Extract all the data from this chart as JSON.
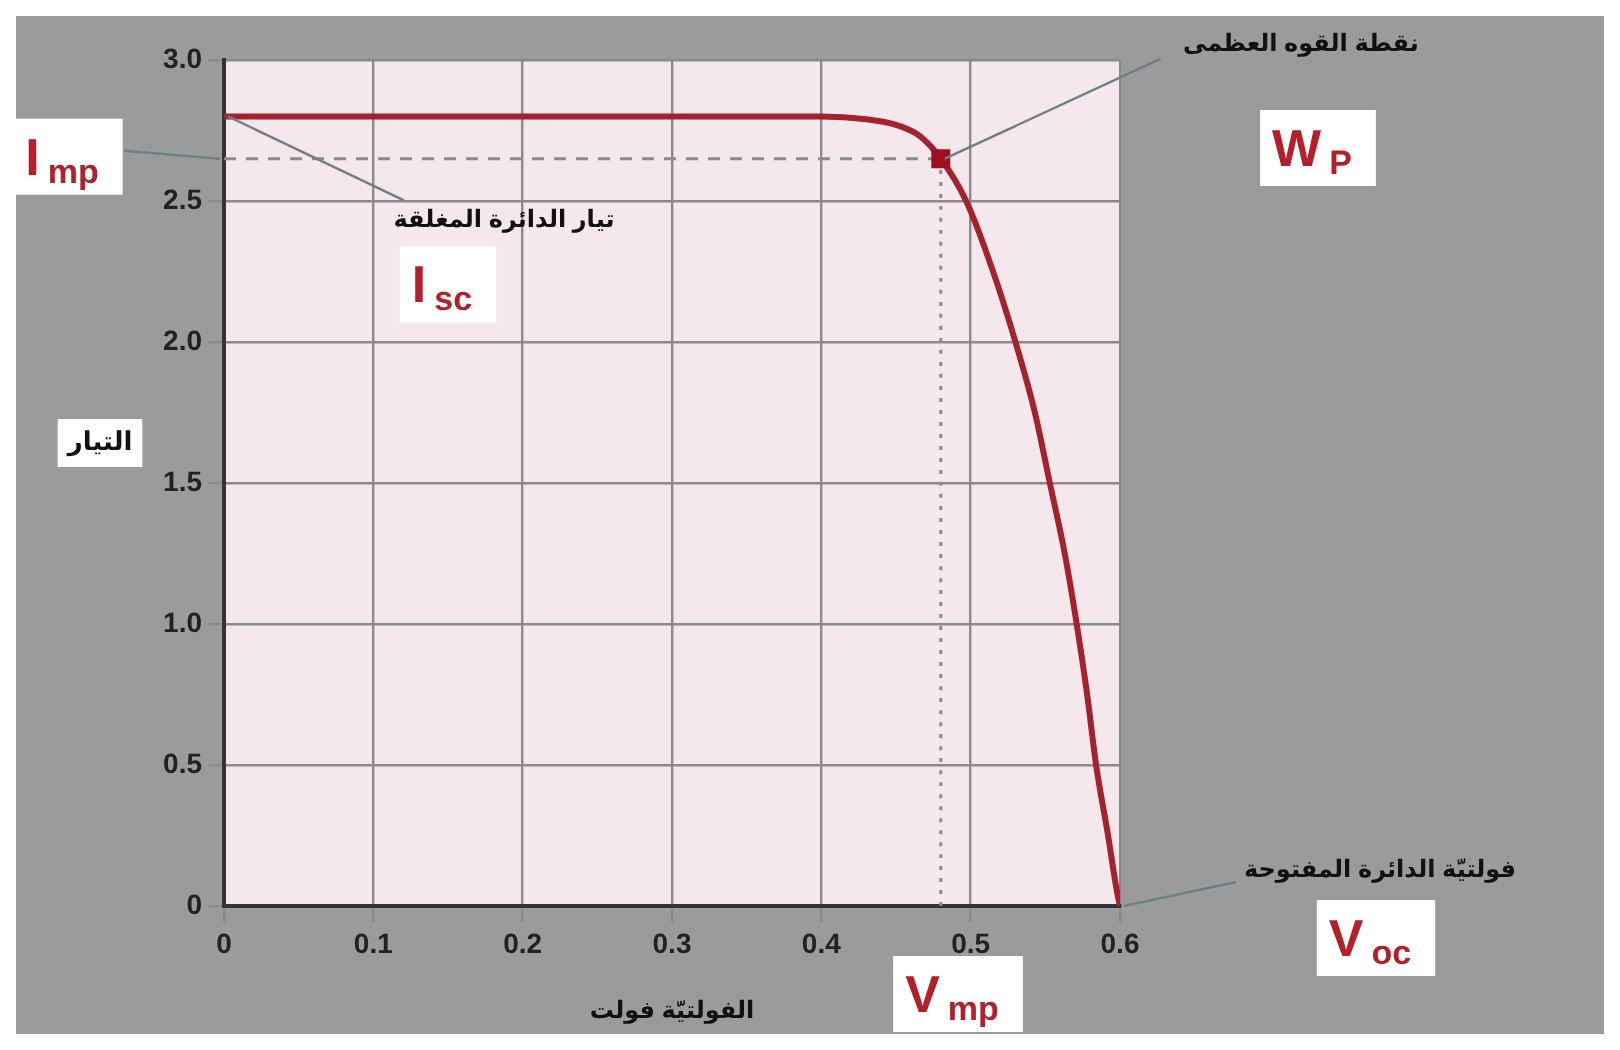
{
  "chart_data": {
    "type": "line",
    "xlabel": "الفولتيّة فولت",
    "ylabel": "التيار",
    "xlim": [
      0,
      0.6
    ],
    "xticks": [
      0,
      0.1,
      0.2,
      0.3,
      0.4,
      0.5,
      0.6
    ],
    "ylim": [
      0,
      3
    ],
    "yticks": [
      0,
      0.5,
      {
        "value": 1,
        "label": "1.0"
      },
      1.5,
      {
        "value": 2,
        "label": "2.0"
      },
      2.5,
      {
        "value": 3,
        "label": "3.0"
      }
    ],
    "grid": true,
    "marker": "none",
    "line_style": "solid",
    "series": [
      {
        "color": "#a3222e",
        "x": [
          0,
          0.4,
          0.43,
          0.45,
          0.466,
          0.48,
          0.497,
          0.515,
          0.53,
          0.543,
          0.553,
          0.563,
          0.571,
          0.578,
          0.584,
          0.592,
          0.598,
          0.6
        ],
        "values": [
          2.8,
          2.8,
          2.79,
          2.77,
          2.73,
          2.65,
          2.5,
          2.25,
          2.0,
          1.75,
          1.5,
          1.25,
          1.0,
          0.75,
          0.5,
          0.25,
          0.05,
          0
        ]
      },
      {
        "type": "line",
        "color": "#8c8c8c",
        "line_style": "dashed",
        "x": [
          0,
          0.48
        ],
        "values": [
          2.65,
          2.65
        ]
      },
      {
        "type": "line",
        "color": "#8c8c8c",
        "line_style": "dotted",
        "x": [
          0.48,
          0.48
        ],
        "values": [
          0,
          2.65
        ]
      },
      {
        "type": "scatter",
        "color": "#9e1020",
        "marker": "square",
        "x": [
          0.48
        ],
        "values": [
          2.65
        ]
      }
    ],
    "annotations": [
      {
        "text": "I$_{mp}$",
        "x": 0,
        "y": 2.65
      },
      {
        "text": "تيار الدائرة المغلقة",
        "x": 0,
        "y": 2.8
      },
      {
        "text": "I$_{sc}$",
        "x": 0,
        "y": 2.8
      },
      {
        "text": "نقطة القوه العظمى",
        "x": 0.48,
        "y": 2.65
      },
      "W$_{P}$",
      {
        "text": "فولتيّة الدائرة المفتوحة",
        "x": 0.6,
        "y": 0
      },
      "V$_{oc}$",
      "V$_{mp}$"
    ]
  }
}
